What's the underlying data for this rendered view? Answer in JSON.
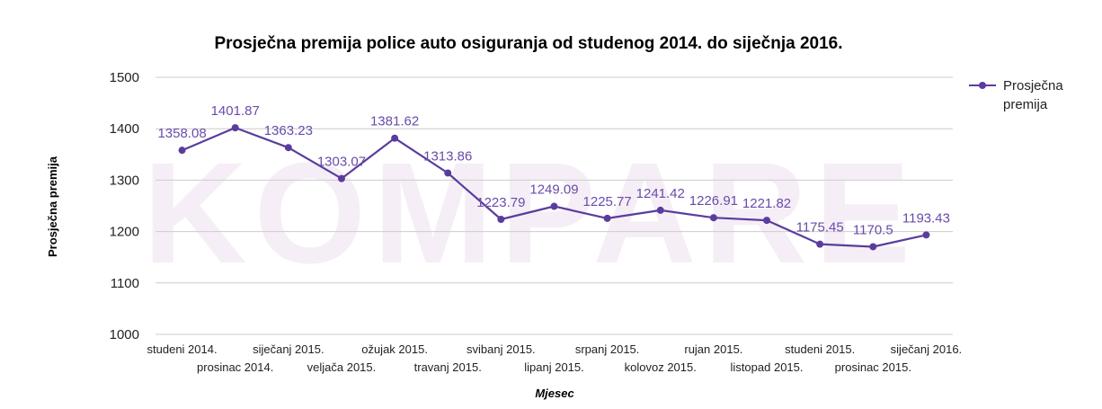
{
  "watermark": "KOMPARE",
  "chart_data": {
    "type": "line",
    "title": "Prosječna premija police auto osiguranja od studenog 2014. do siječnja 2016.",
    "xlabel": "Mjesec",
    "ylabel": "Prosječna premija",
    "categories": [
      "studeni 2014.",
      "prosinac 2014.",
      "siječanj 2015.",
      "veljača 2015.",
      "ožujak 2015.",
      "travanj 2015.",
      "svibanj 2015.",
      "lipanj 2015.",
      "srpanj 2015.",
      "kolovoz 2015.",
      "rujan 2015.",
      "listopad 2015.",
      "studeni 2015.",
      "prosinac 2015.",
      "siječanj 2016."
    ],
    "series": [
      {
        "name": "Prosječna premija",
        "values": [
          1358.08,
          1401.87,
          1363.23,
          1303.07,
          1381.62,
          1313.86,
          1223.79,
          1249.09,
          1225.77,
          1241.42,
          1226.91,
          1221.82,
          1175.45,
          1170.5,
          1193.43
        ],
        "labels": [
          "1358.08",
          "1401.87",
          "1363.23",
          "1303.07",
          "1381.62",
          "1313.86",
          "1223.79",
          "1249.09",
          "1225.77",
          "1241.42",
          "1226.91",
          "1221.82",
          "1175.45",
          "1170.5",
          "1193.43"
        ],
        "color": "#5b3c9e"
      }
    ],
    "ylim": [
      1000,
      1500
    ],
    "yticks": [
      "1000",
      "1100",
      "1200",
      "1300",
      "1400",
      "1500"
    ],
    "grid": true,
    "legend": "right",
    "legend_label": [
      "Prosječna",
      "premija"
    ]
  }
}
